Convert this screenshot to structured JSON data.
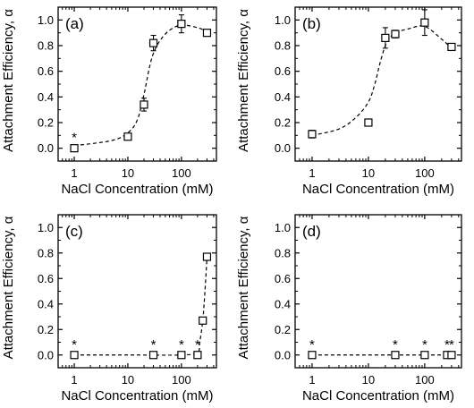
{
  "chart_data": [
    {
      "type": "scatter",
      "panel_label": "(a)",
      "xlabel": "NaCl Concentration (mM)",
      "ylabel": "Attachment Efficiency, α",
      "xscale": "log",
      "xlim": [
        0.5,
        450
      ],
      "ylim": [
        -0.1,
        1.1
      ],
      "xticks": [
        "1",
        "10",
        "100"
      ],
      "yticks": [
        "0.0",
        "0.2",
        "0.4",
        "0.6",
        "0.8",
        "1.0"
      ],
      "series": [
        {
          "x": [
            1,
            10,
            20,
            30,
            100,
            300
          ],
          "y": [
            0.0,
            0.09,
            0.34,
            0.82,
            0.97,
            0.9
          ],
          "yerr": [
            0.0,
            0.02,
            0.05,
            0.06,
            0.07,
            0.02
          ],
          "star": [
            true,
            false,
            false,
            false,
            false,
            false
          ]
        }
      ],
      "fit_curve": {
        "x": [
          1,
          5,
          10,
          15,
          20,
          25,
          30,
          40,
          60,
          100,
          200,
          300
        ],
        "y": [
          0.02,
          0.06,
          0.12,
          0.22,
          0.42,
          0.62,
          0.74,
          0.84,
          0.92,
          0.96,
          0.94,
          0.91
        ]
      },
      "star_text": "*"
    },
    {
      "type": "scatter",
      "panel_label": "(b)",
      "xlabel": "NaCl Concentration (mM)",
      "ylabel": "Attachment Efficiency, α",
      "xscale": "log",
      "xlim": [
        0.5,
        450
      ],
      "ylim": [
        -0.1,
        1.1
      ],
      "xticks": [
        "1",
        "10",
        "100"
      ],
      "yticks": [
        "0.0",
        "0.2",
        "0.4",
        "0.6",
        "0.8",
        "1.0"
      ],
      "series": [
        {
          "x": [
            1,
            10,
            20,
            30,
            100,
            300
          ],
          "y": [
            0.11,
            0.2,
            0.86,
            0.89,
            0.98,
            0.79
          ],
          "yerr": [
            0.03,
            0.02,
            0.08,
            0.03,
            0.1,
            0.02
          ],
          "star": [
            false,
            false,
            false,
            false,
            false,
            false
          ]
        }
      ],
      "fit_curve": {
        "x": [
          1,
          3,
          6,
          10,
          13,
          16,
          20,
          25,
          30,
          50,
          100,
          200,
          300
        ],
        "y": [
          0.1,
          0.15,
          0.24,
          0.36,
          0.5,
          0.66,
          0.8,
          0.87,
          0.9,
          0.93,
          0.95,
          0.85,
          0.78
        ]
      },
      "star_text": "*"
    },
    {
      "type": "scatter",
      "panel_label": "(c)",
      "xlabel": "NaCl Concentration (mM)",
      "ylabel": "Attachment Efficiency, α",
      "xscale": "log",
      "xlim": [
        0.5,
        450
      ],
      "ylim": [
        -0.1,
        1.1
      ],
      "xticks": [
        "1",
        "10",
        "100"
      ],
      "yticks": [
        "0.0",
        "0.2",
        "0.4",
        "0.6",
        "0.8",
        "1.0"
      ],
      "series": [
        {
          "x": [
            1,
            30,
            100,
            200,
            250,
            300
          ],
          "y": [
            0.0,
            0.0,
            0.0,
            0.0,
            0.27,
            0.77
          ],
          "yerr": [
            0,
            0,
            0,
            0,
            0.02,
            0.02
          ],
          "star": [
            true,
            true,
            true,
            true,
            false,
            false
          ]
        }
      ],
      "fit_curve": {
        "x": [
          1,
          10,
          100,
          200,
          220,
          250,
          275,
          300
        ],
        "y": [
          0.0,
          0.0,
          0.0,
          0.02,
          0.1,
          0.27,
          0.5,
          0.77
        ]
      },
      "star_text": "*"
    },
    {
      "type": "scatter",
      "panel_label": "(d)",
      "xlabel": "NaCl Concentration (mM)",
      "ylabel": "Attachment Efficiency, α",
      "xscale": "log",
      "xlim": [
        0.5,
        450
      ],
      "ylim": [
        -0.1,
        1.1
      ],
      "xticks": [
        "1",
        "10",
        "100"
      ],
      "yticks": [
        "0.0",
        "0.2",
        "0.4",
        "0.6",
        "0.8",
        "1.0"
      ],
      "series": [
        {
          "x": [
            1,
            30,
            100,
            250,
            300
          ],
          "y": [
            0.0,
            0.0,
            0.0,
            0.0,
            0.0
          ],
          "yerr": [
            0,
            0,
            0,
            0,
            0
          ],
          "star": [
            true,
            true,
            true,
            true,
            true
          ]
        }
      ],
      "fit_curve": {
        "x": [
          1,
          300
        ],
        "y": [
          0.0,
          0.0
        ]
      },
      "star_text": "*"
    }
  ]
}
